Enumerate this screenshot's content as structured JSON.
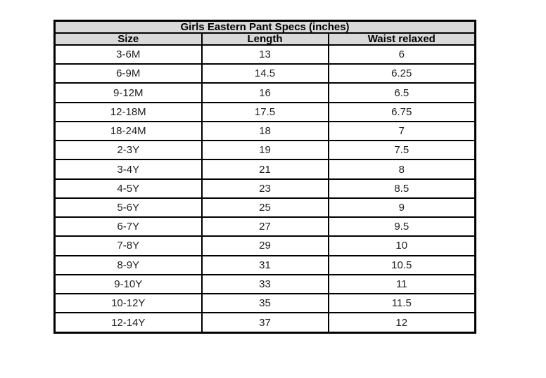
{
  "table": {
    "title": "Girls Eastern Pant Specs (inches)",
    "columns": {
      "size": "Size",
      "length": "Length",
      "waist": "Waist relaxed"
    },
    "rows": [
      {
        "size": "3-6M",
        "length": "13",
        "waist": "6"
      },
      {
        "size": "6-9M",
        "length": "14.5",
        "waist": "6.25"
      },
      {
        "size": "9-12M",
        "length": "16",
        "waist": "6.5"
      },
      {
        "size": "12-18M",
        "length": "17.5",
        "waist": "6.75"
      },
      {
        "size": "18-24M",
        "length": "18",
        "waist": "7"
      },
      {
        "size": "2-3Y",
        "length": "19",
        "waist": "7.5"
      },
      {
        "size": "3-4Y",
        "length": "21",
        "waist": "8"
      },
      {
        "size": "4-5Y",
        "length": "23",
        "waist": "8.5"
      },
      {
        "size": "5-6Y",
        "length": "25",
        "waist": "9"
      },
      {
        "size": "6-7Y",
        "length": "27",
        "waist": "9.5"
      },
      {
        "size": "7-8Y",
        "length": "29",
        "waist": "10"
      },
      {
        "size": "8-9Y",
        "length": "31",
        "waist": "10.5"
      },
      {
        "size": "9-10Y",
        "length": "33",
        "waist": "11"
      },
      {
        "size": "10-12Y",
        "length": "35",
        "waist": "11.5"
      },
      {
        "size": "12-14Y",
        "length": "37",
        "waist": "12"
      }
    ],
    "colors": {
      "header_background": "#d9d9d9",
      "border": "#000000",
      "data_text": "#1f1f1f"
    }
  }
}
